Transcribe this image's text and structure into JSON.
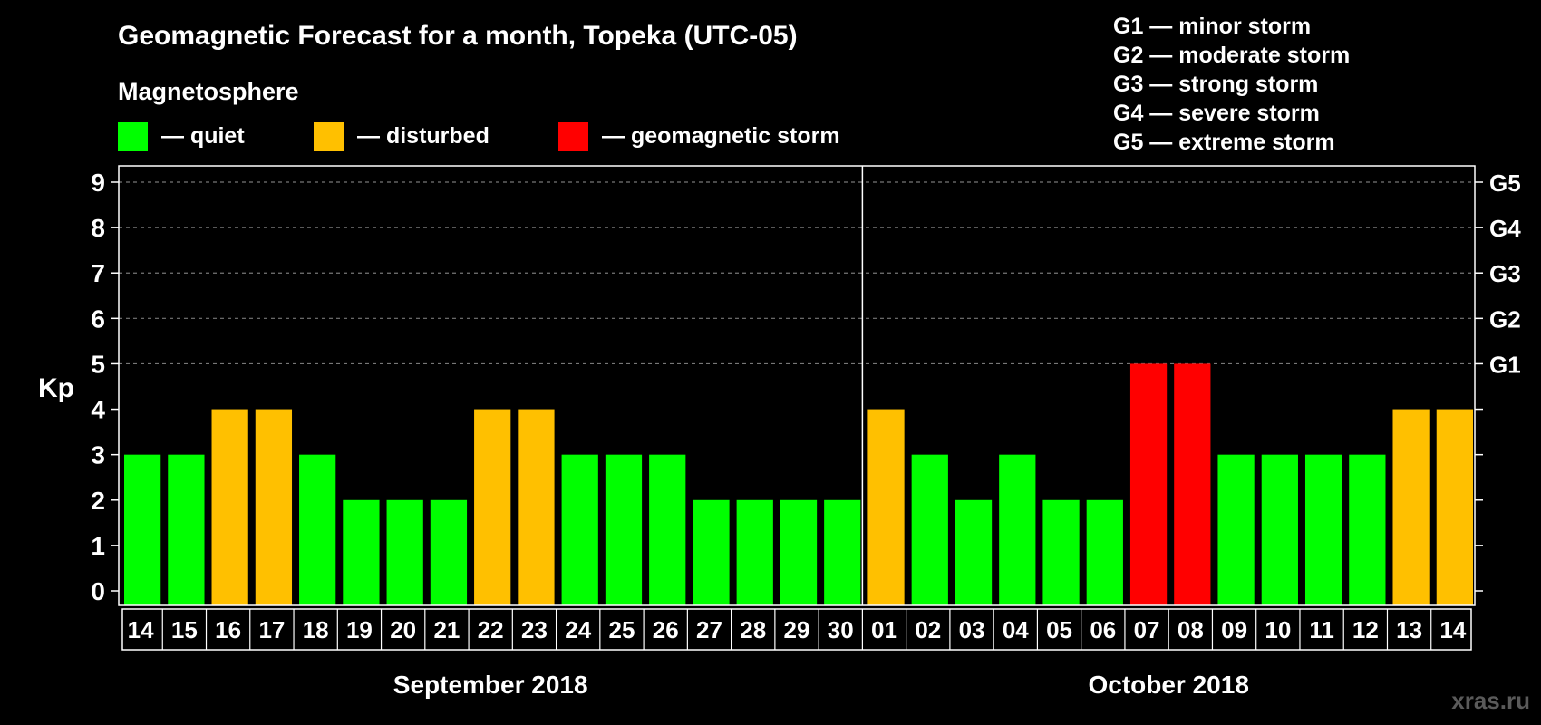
{
  "header": {
    "title": "Geomagnetic Forecast for a month, Topeka (UTC-05)",
    "legend_heading": "Magnetosphere"
  },
  "legend": [
    {
      "label": "— quiet",
      "color": "#00ff00"
    },
    {
      "label": "— disturbed",
      "color": "#ffc000"
    },
    {
      "label": "— geomagnetic storm",
      "color": "#ff0000"
    }
  ],
  "storm_scale": [
    "G1 — minor storm",
    "G2 — moderate storm",
    "G3 — strong storm",
    "G4 — severe storm",
    "G5 — extreme storm"
  ],
  "watermark": "xras.ru",
  "chart_data": {
    "type": "bar",
    "ylabel": "Kp",
    "ylim": [
      0,
      9
    ],
    "yticks": [
      "0",
      "1",
      "2",
      "3",
      "4",
      "5",
      "6",
      "7",
      "8",
      "9"
    ],
    "right_axis_labels": [
      {
        "kp": 5,
        "label": "G1"
      },
      {
        "kp": 6,
        "label": "G2"
      },
      {
        "kp": 7,
        "label": "G3"
      },
      {
        "kp": 8,
        "label": "G4"
      },
      {
        "kp": 9,
        "label": "G5"
      }
    ],
    "grid": "dashed horizontal at Kp 5-9",
    "months": [
      {
        "label": "September 2018",
        "start_index": 0,
        "count": 17
      },
      {
        "label": "October 2018",
        "start_index": 17,
        "count": 14
      }
    ],
    "categories": [
      "14",
      "15",
      "16",
      "17",
      "18",
      "19",
      "20",
      "21",
      "22",
      "23",
      "24",
      "25",
      "26",
      "27",
      "28",
      "29",
      "30",
      "01",
      "02",
      "03",
      "04",
      "05",
      "06",
      "07",
      "08",
      "09",
      "10",
      "11",
      "12",
      "13",
      "14"
    ],
    "values": [
      3,
      3,
      4,
      4,
      3,
      2,
      2,
      2,
      4,
      4,
      3,
      3,
      3,
      2,
      2,
      2,
      2,
      4,
      3,
      2,
      3,
      2,
      2,
      5,
      5,
      3,
      3,
      3,
      3,
      4,
      4
    ],
    "status_colors": {
      "quiet": "#00ff00",
      "disturbed": "#ffc000",
      "storm": "#ff0000"
    }
  }
}
